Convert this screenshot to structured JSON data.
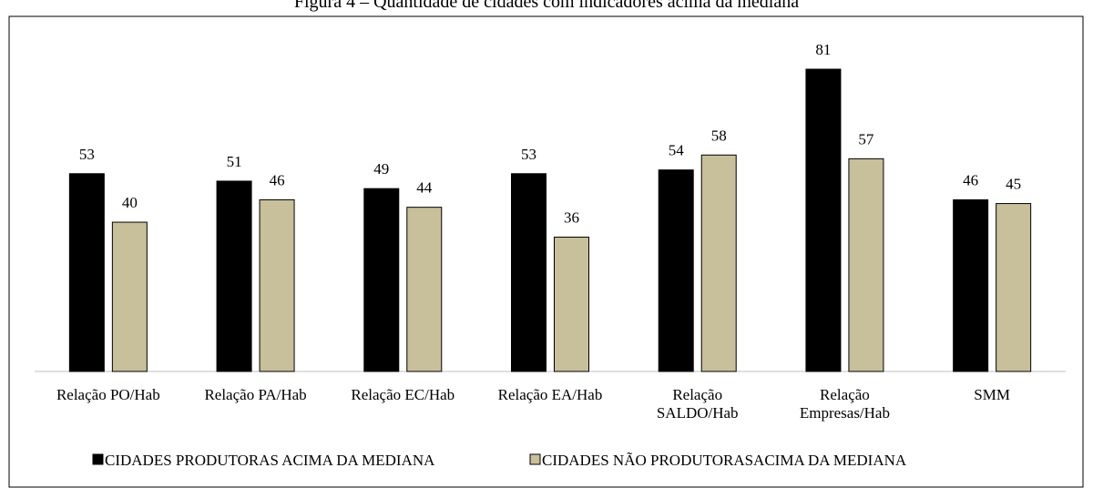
{
  "chart_data": {
    "type": "bar",
    "title": "Figura 4 – Quantidade de cidades com indicadores acima da mediana",
    "categories": [
      "Relação PO/Hab",
      "Relação PA/Hab",
      "Relação EC/Hab",
      "Relação EA/Hab",
      "Relação\nSALDO/Hab",
      "Relação\nEmpresas/Hab",
      "SMM"
    ],
    "series": [
      {
        "name": "CIDADES PRODUTORAS ACIMA DA MEDIANA",
        "color": "#000000",
        "values": [
          53,
          51,
          49,
          53,
          54,
          81,
          46
        ]
      },
      {
        "name": "CIDADES NÃO PRODUTORASACIMA DA MEDIANA",
        "color": "#c8bf9b",
        "values": [
          40,
          46,
          44,
          36,
          58,
          57,
          45
        ]
      }
    ],
    "legend": "bottom"
  }
}
